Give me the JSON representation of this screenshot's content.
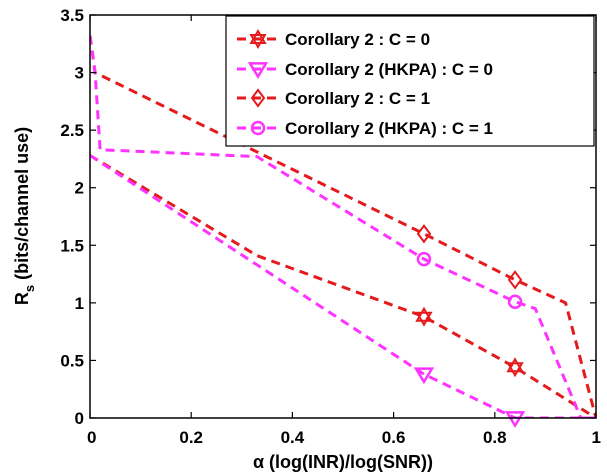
{
  "chart_data": {
    "type": "line",
    "title": "",
    "xlabel": "α (log(INR)/log(SNR))",
    "ylabel_main": "R",
    "ylabel_sub": "s",
    "ylabel_rest": " (bits/channel use)",
    "xlim": [
      0,
      1
    ],
    "ylim": [
      0,
      3.5
    ],
    "xticks": [
      0,
      0.2,
      0.4,
      0.6,
      0.8,
      1
    ],
    "xtick_labels": [
      "0",
      "0.2",
      "0.4",
      "0.6",
      "0.8",
      "1"
    ],
    "yticks": [
      0,
      0.5,
      1,
      1.5,
      2,
      2.5,
      3,
      3.5
    ],
    "ytick_labels": [
      "0",
      "0.5",
      "1",
      "1.5",
      "2",
      "2.5",
      "3",
      "3.5"
    ],
    "grid": false,
    "legend_position": "top-right",
    "series": [
      {
        "name": "Corollary 2 : C = 0",
        "color": "#e41a1c",
        "marker": "star",
        "x": [
          0,
          0.33,
          0.66,
          0.84,
          1.0
        ],
        "y": [
          2.28,
          1.41,
          0.88,
          0.44,
          0.0
        ],
        "marker_x": [
          0.66,
          0.84
        ],
        "marker_y": [
          0.88,
          0.44
        ]
      },
      {
        "name": "Corollary 2 (HKPA) : C = 0",
        "color": "#ff33ff",
        "marker": "triangle-down",
        "x": [
          0,
          0.66,
          0.84,
          1.0
        ],
        "y": [
          2.28,
          0.38,
          0.0,
          0.0
        ],
        "marker_x": [
          0.66,
          0.84
        ],
        "marker_y": [
          0.38,
          0.0
        ]
      },
      {
        "name": "Corollary 2 : C = 1",
        "color": "#e41a1c",
        "marker": "diamond",
        "x": [
          0,
          0.01,
          0.66,
          0.84,
          0.94,
          1.0
        ],
        "y": [
          3.32,
          3.0,
          1.6,
          1.2,
          1.0,
          0.0
        ],
        "marker_x": [
          0.66,
          0.84
        ],
        "marker_y": [
          1.6,
          1.2
        ]
      },
      {
        "name": "Corollary 2 (HKPA) : C = 1",
        "color": "#ff33ff",
        "marker": "circle",
        "x": [
          0,
          0.01,
          0.02,
          0.33,
          0.66,
          0.84,
          0.88,
          0.97,
          1.0
        ],
        "y": [
          3.32,
          3.0,
          2.33,
          2.27,
          1.38,
          1.01,
          0.95,
          0.0,
          0.0
        ],
        "marker_x": [
          0.66,
          0.84
        ],
        "marker_y": [
          1.38,
          1.01
        ]
      }
    ]
  }
}
